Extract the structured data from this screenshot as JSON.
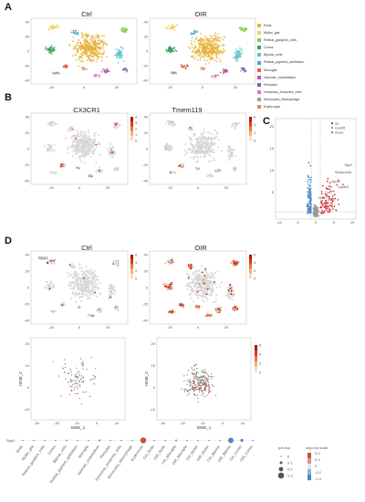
{
  "panels": {
    "A": {
      "letter": "A",
      "titles": [
        "Ctrl",
        "OIR"
      ]
    },
    "B": {
      "letter": "B",
      "titles": [
        "CX3CR1",
        "Tmem119"
      ],
      "scale1": [
        "4",
        "3",
        "2",
        "1",
        "0"
      ],
      "scale2": [
        "6",
        "4",
        "2",
        "0"
      ]
    },
    "C": {
      "letter": "C",
      "legend": [
        "up",
        "notdiff",
        "down"
      ],
      "genes": [
        "Spp1",
        "Serpinb9a",
        "Apoe",
        "Lgals3",
        "Cst7",
        "Ccl12",
        "Ctsl"
      ]
    },
    "D": {
      "letter": "D",
      "titles": [
        "Ctrl",
        "OIR"
      ],
      "gene_label": "Spp1",
      "xlabel": "tSNE_1",
      "ylabel": "tSNE_2",
      "dot_gene": "Spp1",
      "dot_legend_titles": [
        "pct.exp",
        "avg.exp.scale"
      ],
      "pct_values": [
        "0",
        "0.1",
        "0.2",
        "0.3"
      ],
      "scale_values": [
        "0.4",
        "0.2",
        "0",
        "-0.2",
        "-0.4"
      ],
      "heat_scale": [
        "6",
        "4",
        "2",
        "0"
      ]
    }
  },
  "celltypes": [
    {
      "name": "Rods",
      "color": "#e8b23a"
    },
    {
      "name": "Muller_glia",
      "color": "#f0d35a"
    },
    {
      "name": "Retinal_ganglion_cells",
      "color": "#8fc64b"
    },
    {
      "name": "Cones",
      "color": "#3aa35f"
    },
    {
      "name": "Bipolar_cells",
      "color": "#5bc4c9"
    },
    {
      "name": "Retinal_pigment_epithelium",
      "color": "#4aa0d8"
    },
    {
      "name": "Microglia",
      "color": "#e2604e"
    },
    {
      "name": "Vascular_endothelium",
      "color": "#b55aa8"
    },
    {
      "name": "Pericytes",
      "color": "#8a5bb1"
    },
    {
      "name": "Horizonta_Amacrine_cells",
      "color": "#d97cb0"
    },
    {
      "name": "Monocytes_Macrophage",
      "color": "#9aa0a6"
    },
    {
      "name": "Erythrocyte",
      "color": "#d98b6a"
    }
  ],
  "dot_categories": [
    "Rods",
    "Muller_glia",
    "Retinal_ganglion_cells",
    "Cones",
    "Bipolar_cells",
    "Retinal_pigment_epithelium",
    "Microglia",
    "Vascular_endothelium",
    "Pericytes",
    "Horizonta_Amacrine_cells",
    "Monocytes_Macrophage",
    "Erythrocyte",
    "Ctrl_Rods",
    "OIR_Rods",
    "Ctrl_Microglia",
    "OIR_Microglia",
    "Ctrl_Muller",
    "OIR_Muller",
    "Ctrl_Bipolar",
    "OIR_Bipolar",
    "Ctrl_Cones",
    "OIR_Cones"
  ],
  "tsne_ticks_x": [
    "-20",
    "0",
    "20"
  ],
  "tsne_ticks_y": [
    "40",
    "20",
    "0",
    "-20",
    "-40"
  ],
  "volcano_ticks_x": [
    "-10",
    "-5",
    "0",
    "5",
    "10"
  ],
  "volcano_ticks_y": [
    "20",
    "15",
    "10",
    "5"
  ]
}
